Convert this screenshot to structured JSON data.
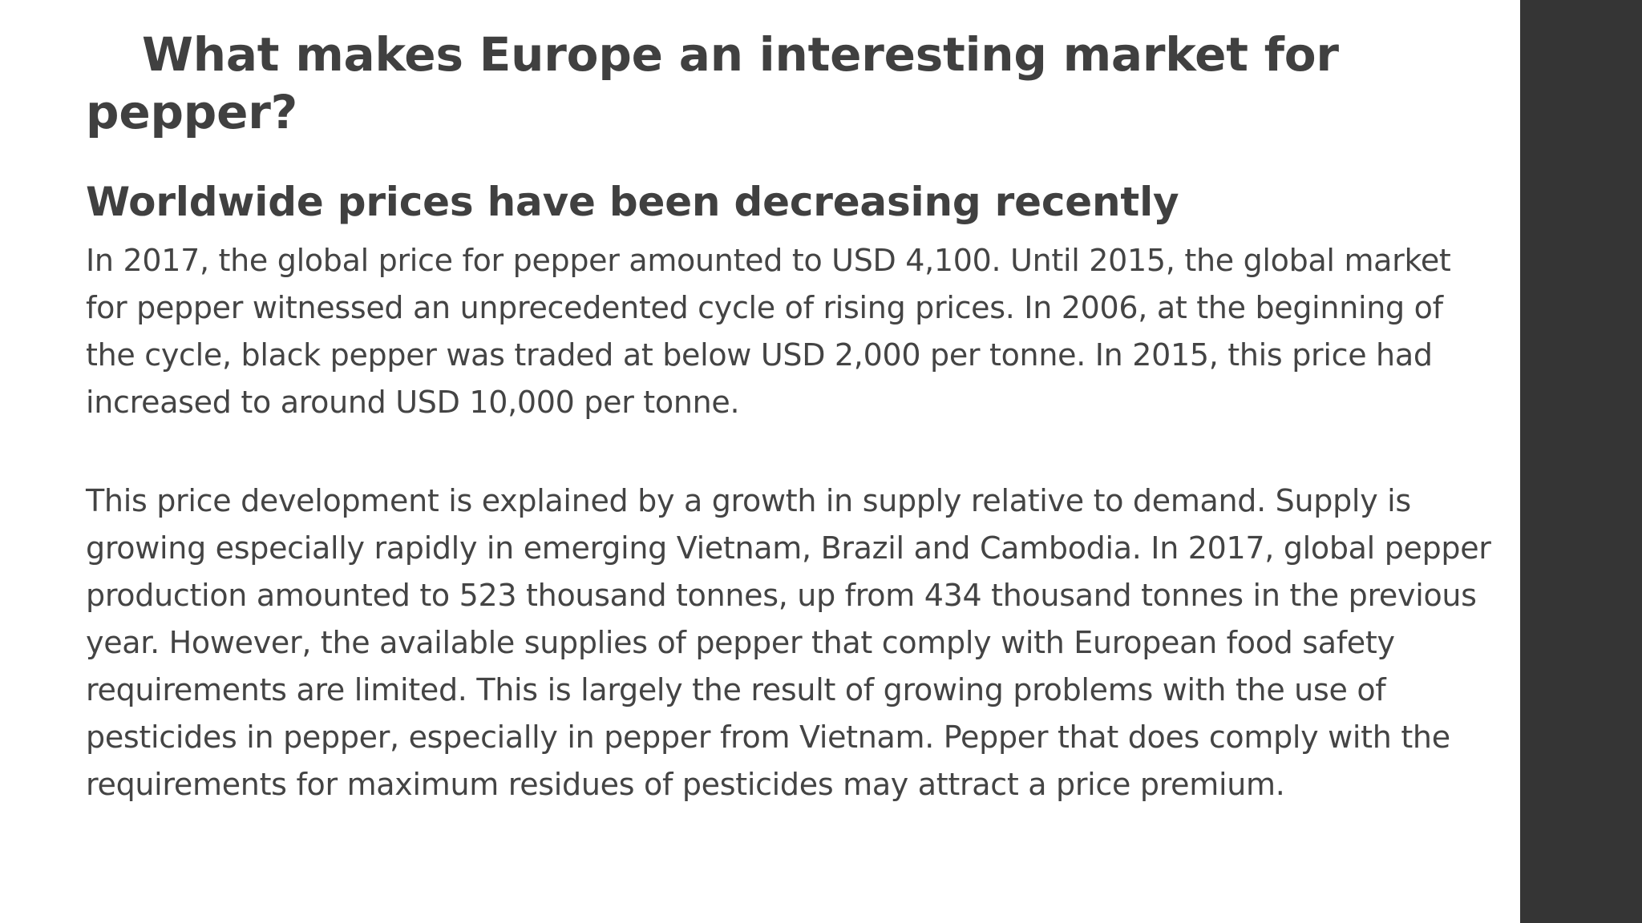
{
  "slide": {
    "title": "What makes Europe an interesting market for pepper?",
    "subtitle": "Worldwide prices have been decreasing recently",
    "paragraphs": [
      "In 2017, the global price for pepper amounted to USD 4,100. Until 2015, the global market for pepper witnessed an unprecedented cycle of rising prices. In 2006, at the beginning of the cycle, black pepper was traded at below USD 2,000 per tonne. In 2015, this price had increased to around USD 10,000 per tonne.",
      "This price development is explained by a growth in supply relative to demand. Supply is growing especially rapidly in emerging Vietnam, Brazil and Cambodia. In 2017, global pepper production amounted to 523 thousand tonnes, up from 434 thousand tonnes in the previous year. However, the available supplies of pepper that comply with European food safety requirements are limited. This is largely the result of growing problems with the use of pesticides in pepper, especially in pepper from Vietnam. Pepper that does comply with the requirements for maximum residues of pesticides may attract a price premium."
    ]
  },
  "colors": {
    "background": "#ffffff",
    "sidebar": "#353535",
    "text": "#444444"
  }
}
